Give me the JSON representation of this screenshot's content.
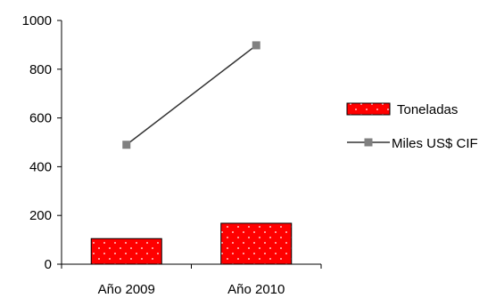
{
  "chart_data": {
    "type": "bar+line",
    "categories": [
      "Año 2009",
      "Año 2010"
    ],
    "series": [
      {
        "name": "Toneladas",
        "type": "bar",
        "values": [
          105,
          168
        ],
        "color": "#ff0000"
      },
      {
        "name": "Miles US$ CIF",
        "type": "line",
        "values": [
          490,
          898
        ],
        "color": "#333333",
        "marker_color": "#808080"
      }
    ],
    "ylim": [
      0,
      1000
    ],
    "yticks": [
      "0",
      "200",
      "400",
      "600",
      "800",
      "1000"
    ],
    "legend_position": "right",
    "grid": false
  }
}
